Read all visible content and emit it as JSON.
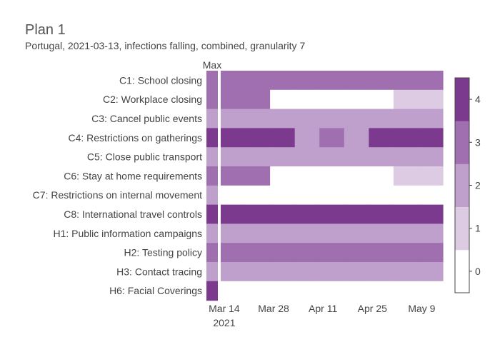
{
  "title": "Plan 1",
  "subtitle": "Portugal, 2021-03-13, infections falling, combined, granularity 7",
  "chart_data": {
    "type": "heatmap",
    "max_column_label": "Max",
    "rows": [
      "C1: School closing",
      "C2: Workplace closing",
      "C3: Cancel public events",
      "C4: Restrictions on gatherings",
      "C5: Close public transport",
      "C6: Stay at home requirements",
      "C7: Restrictions on internal movement",
      "C8: International travel controls",
      "H1: Public information campaigns",
      "H2: Testing policy",
      "H3: Contact tracing",
      "H6: Facial Coverings"
    ],
    "max_values": [
      3,
      3,
      2,
      4,
      2,
      3,
      2,
      4,
      2,
      3,
      2,
      4
    ],
    "x_start": "2021-03-13",
    "x_end": "2021-05-15",
    "granularity_days": 7,
    "periods": [
      "2021-03-13",
      "2021-03-20",
      "2021-03-27",
      "2021-04-03",
      "2021-04-10",
      "2021-04-17",
      "2021-04-24",
      "2021-05-01",
      "2021-05-08"
    ],
    "values": [
      [
        3,
        3,
        3,
        3,
        3,
        3,
        3,
        3,
        3
      ],
      [
        3,
        3,
        0,
        0,
        0,
        0,
        0,
        1,
        1
      ],
      [
        2,
        2,
        2,
        2,
        2,
        2,
        2,
        2,
        2
      ],
      [
        4,
        4,
        4,
        2,
        3,
        2,
        4,
        4,
        4
      ],
      [
        2,
        2,
        2,
        2,
        2,
        2,
        2,
        2,
        2
      ],
      [
        3,
        3,
        0,
        0,
        0,
        0,
        0,
        1,
        1
      ],
      [
        0,
        0,
        0,
        0,
        0,
        0,
        0,
        0,
        0
      ],
      [
        4,
        4,
        4,
        4,
        4,
        4,
        4,
        4,
        4
      ],
      [
        2,
        2,
        2,
        2,
        2,
        2,
        2,
        2,
        2
      ],
      [
        3,
        3,
        3,
        3,
        3,
        3,
        3,
        3,
        3
      ],
      [
        2,
        2,
        2,
        2,
        2,
        2,
        2,
        2,
        2
      ],
      [
        0,
        0,
        0,
        0,
        0,
        0,
        0,
        0,
        0
      ]
    ],
    "x_ticks": [
      {
        "date": "2021-03-14",
        "label": "Mar 14",
        "sublabel": "2021"
      },
      {
        "date": "2021-03-28",
        "label": "Mar 28"
      },
      {
        "date": "2021-04-11",
        "label": "Apr 11"
      },
      {
        "date": "2021-04-25",
        "label": "Apr 25"
      },
      {
        "date": "2021-05-09",
        "label": "May 9"
      }
    ],
    "colorscale": {
      "range": [
        0,
        4
      ],
      "ticks": [
        "0",
        "1",
        "2",
        "3",
        "4"
      ],
      "colors": [
        "#ffffff",
        "#dccbe3",
        "#bf9fcb",
        "#9f6fb0",
        "#7b3a8e"
      ]
    }
  }
}
